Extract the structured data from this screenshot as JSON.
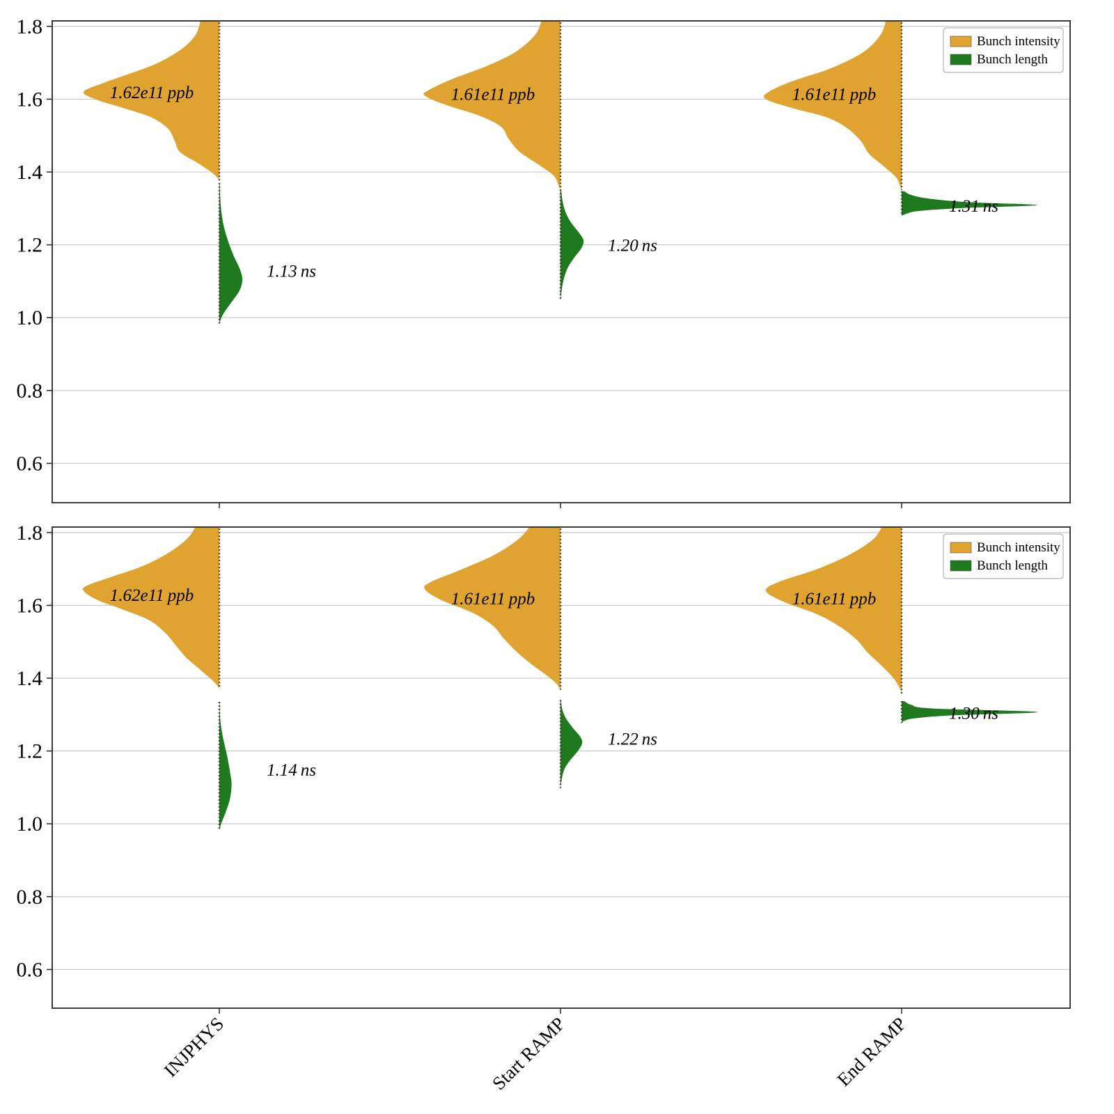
{
  "figure": {
    "background": "#ffffff",
    "n_panels": 2
  },
  "chart_data": [
    {
      "type": "violin",
      "panel": "top",
      "categories": [
        "INJPHYS",
        "Start RAMP",
        "End RAMP"
      ],
      "ylim": [
        0.49,
        1.82
      ],
      "yticks": [
        "0.6",
        "0.8",
        "1.0",
        "1.2",
        "1.4",
        "1.6",
        "1.8"
      ],
      "grid": true,
      "show_xtick_labels": false,
      "legend": {
        "position": "upper right",
        "entries": [
          {
            "label": "Bunch intensity",
            "color": "#E0A330"
          },
          {
            "label": "Bunch length",
            "color": "#1F7A1F"
          }
        ]
      },
      "series": [
        {
          "name": "Bunch intensity",
          "side": "left",
          "color": "#E0A330",
          "violins": [
            {
              "category": "INJPHYS",
              "annotation": {
                "value": "1.62e11",
                "unit": "ppb",
                "at": 1.62
              },
              "width_hint": 1.0,
              "profile": [
                [
                  1.83,
                  0.13
                ],
                [
                  1.78,
                  0.17
                ],
                [
                  1.74,
                  0.27
                ],
                [
                  1.7,
                  0.45
                ],
                [
                  1.67,
                  0.66
                ],
                [
                  1.645,
                  0.85
                ],
                [
                  1.62,
                  1.0
                ],
                [
                  1.598,
                  0.9
                ],
                [
                  1.575,
                  0.7
                ],
                [
                  1.55,
                  0.5
                ],
                [
                  1.52,
                  0.38
                ],
                [
                  1.487,
                  0.33
                ],
                [
                  1.455,
                  0.29
                ],
                [
                  1.425,
                  0.16
                ],
                [
                  1.4,
                  0.06
                ],
                [
                  1.383,
                  0.01
                ],
                [
                  1.375,
                  0.0
                ]
              ]
            },
            {
              "category": "Start RAMP",
              "annotation": {
                "value": "1.61e11",
                "unit": "ppb",
                "at": 1.615
              },
              "width_hint": 1.0,
              "profile": [
                [
                  1.83,
                  0.13
                ],
                [
                  1.78,
                  0.18
                ],
                [
                  1.73,
                  0.33
                ],
                [
                  1.69,
                  0.55
                ],
                [
                  1.655,
                  0.8
                ],
                [
                  1.625,
                  0.97
                ],
                [
                  1.61,
                  1.0
                ],
                [
                  1.585,
                  0.85
                ],
                [
                  1.555,
                  0.6
                ],
                [
                  1.525,
                  0.44
                ],
                [
                  1.49,
                  0.38
                ],
                [
                  1.455,
                  0.3
                ],
                [
                  1.42,
                  0.16
                ],
                [
                  1.39,
                  0.05
                ],
                [
                  1.36,
                  0.01
                ],
                [
                  1.352,
                  0.0
                ]
              ]
            },
            {
              "category": "End RAMP",
              "annotation": {
                "value": "1.61e11",
                "unit": "ppb",
                "at": 1.615
              },
              "width_hint": 1.0,
              "profile": [
                [
                  1.83,
                  0.11
                ],
                [
                  1.78,
                  0.15
                ],
                [
                  1.73,
                  0.28
                ],
                [
                  1.685,
                  0.52
                ],
                [
                  1.65,
                  0.8
                ],
                [
                  1.62,
                  0.98
                ],
                [
                  1.6,
                  1.0
                ],
                [
                  1.575,
                  0.8
                ],
                [
                  1.55,
                  0.55
                ],
                [
                  1.52,
                  0.4
                ],
                [
                  1.485,
                  0.3
                ],
                [
                  1.45,
                  0.24
                ],
                [
                  1.415,
                  0.13
                ],
                [
                  1.385,
                  0.04
                ],
                [
                  1.36,
                  0.01
                ],
                [
                  1.35,
                  0.0
                ]
              ]
            }
          ]
        },
        {
          "name": "Bunch length",
          "side": "right",
          "color": "#1F7A1F",
          "violins": [
            {
              "category": "INJPHYS",
              "annotation": {
                "value": "1.13",
                "unit": "ns",
                "at": 1.13
              },
              "width_hint": 0.17,
              "profile": [
                [
                  1.37,
                  0.02
                ],
                [
                  1.33,
                  0.04
                ],
                [
                  1.29,
                  0.09
                ],
                [
                  1.25,
                  0.2
                ],
                [
                  1.21,
                  0.38
                ],
                [
                  1.17,
                  0.62
                ],
                [
                  1.135,
                  0.88
                ],
                [
                  1.105,
                  1.0
                ],
                [
                  1.075,
                  0.88
                ],
                [
                  1.04,
                  0.5
                ],
                [
                  1.01,
                  0.17
                ],
                [
                  0.988,
                  0.02
                ],
                [
                  0.982,
                  0.0
                ]
              ]
            },
            {
              "category": "Start RAMP",
              "annotation": {
                "value": "1.20",
                "unit": "ns",
                "at": 1.2
              },
              "width_hint": 0.17,
              "profile": [
                [
                  1.352,
                  0.03
                ],
                [
                  1.32,
                  0.09
                ],
                [
                  1.29,
                  0.22
                ],
                [
                  1.262,
                  0.45
                ],
                [
                  1.235,
                  0.78
                ],
                [
                  1.212,
                  1.0
                ],
                [
                  1.19,
                  0.9
                ],
                [
                  1.165,
                  0.6
                ],
                [
                  1.135,
                  0.3
                ],
                [
                  1.1,
                  0.12
                ],
                [
                  1.065,
                  0.03
                ],
                [
                  1.047,
                  0.0
                ]
              ]
            },
            {
              "category": "End RAMP",
              "annotation": {
                "value": "1.31",
                "unit": "ns",
                "at": 1.308
              },
              "width_hint": 1.0,
              "profile": [
                [
                  1.347,
                  0.02
                ],
                [
                  1.337,
                  0.07
                ],
                [
                  1.327,
                  0.2
                ],
                [
                  1.317,
                  0.5
                ],
                [
                  1.309,
                  1.0
                ],
                [
                  1.301,
                  0.45
                ],
                [
                  1.293,
                  0.13
                ],
                [
                  1.286,
                  0.04
                ],
                [
                  1.28,
                  0.0
                ]
              ]
            }
          ]
        }
      ]
    },
    {
      "type": "violin",
      "panel": "bottom",
      "categories": [
        "INJPHYS",
        "Start RAMP",
        "End RAMP"
      ],
      "ylim": [
        0.49,
        1.82
      ],
      "yticks": [
        "0.6",
        "0.8",
        "1.0",
        "1.2",
        "1.4",
        "1.6",
        "1.8"
      ],
      "grid": true,
      "show_xtick_labels": true,
      "legend": {
        "position": "upper right",
        "entries": [
          {
            "label": "Bunch intensity",
            "color": "#E0A330"
          },
          {
            "label": "Bunch length",
            "color": "#1F7A1F"
          }
        ]
      },
      "series": [
        {
          "name": "Bunch intensity",
          "side": "left",
          "color": "#E0A330",
          "violins": [
            {
              "category": "INJPHYS",
              "annotation": {
                "value": "1.62e11",
                "unit": "ppb",
                "at": 1.63
              },
              "width_hint": 1.0,
              "profile": [
                [
                  1.83,
                  0.16
                ],
                [
                  1.79,
                  0.22
                ],
                [
                  1.75,
                  0.35
                ],
                [
                  1.71,
                  0.55
                ],
                [
                  1.68,
                  0.78
                ],
                [
                  1.655,
                  0.97
                ],
                [
                  1.64,
                  1.0
                ],
                [
                  1.615,
                  0.9
                ],
                [
                  1.59,
                  0.72
                ],
                [
                  1.56,
                  0.52
                ],
                [
                  1.525,
                  0.4
                ],
                [
                  1.49,
                  0.32
                ],
                [
                  1.455,
                  0.24
                ],
                [
                  1.42,
                  0.13
                ],
                [
                  1.39,
                  0.04
                ],
                [
                  1.372,
                  0.0
                ]
              ]
            },
            {
              "category": "Start RAMP",
              "annotation": {
                "value": "1.61e11",
                "unit": "ppb",
                "at": 1.62
              },
              "width_hint": 1.0,
              "profile": [
                [
                  1.83,
                  0.2
                ],
                [
                  1.785,
                  0.3
                ],
                [
                  1.74,
                  0.48
                ],
                [
                  1.7,
                  0.72
                ],
                [
                  1.665,
                  0.95
                ],
                [
                  1.645,
                  1.0
                ],
                [
                  1.615,
                  0.88
                ],
                [
                  1.58,
                  0.65
                ],
                [
                  1.545,
                  0.5
                ],
                [
                  1.51,
                  0.42
                ],
                [
                  1.475,
                  0.33
                ],
                [
                  1.44,
                  0.22
                ],
                [
                  1.41,
                  0.11
                ],
                [
                  1.385,
                  0.03
                ],
                [
                  1.368,
                  0.0
                ]
              ]
            },
            {
              "category": "End RAMP",
              "annotation": {
                "value": "1.61e11",
                "unit": "ppb",
                "at": 1.62
              },
              "width_hint": 1.0,
              "profile": [
                [
                  1.83,
                  0.13
                ],
                [
                  1.785,
                  0.2
                ],
                [
                  1.74,
                  0.38
                ],
                [
                  1.7,
                  0.62
                ],
                [
                  1.665,
                  0.9
                ],
                [
                  1.64,
                  1.0
                ],
                [
                  1.61,
                  0.87
                ],
                [
                  1.575,
                  0.62
                ],
                [
                  1.54,
                  0.45
                ],
                [
                  1.505,
                  0.33
                ],
                [
                  1.47,
                  0.25
                ],
                [
                  1.435,
                  0.15
                ],
                [
                  1.4,
                  0.06
                ],
                [
                  1.37,
                  0.01
                ],
                [
                  1.355,
                  0.0
                ]
              ]
            }
          ]
        },
        {
          "name": "Bunch length",
          "side": "right",
          "color": "#1F7A1F",
          "violins": [
            {
              "category": "INJPHYS",
              "annotation": {
                "value": "1.14",
                "unit": "ns",
                "at": 1.15
              },
              "width_hint": 0.09,
              "profile": [
                [
                  1.335,
                  0.02
                ],
                [
                  1.3,
                  0.05
                ],
                [
                  1.27,
                  0.13
                ],
                [
                  1.24,
                  0.28
                ],
                [
                  1.21,
                  0.48
                ],
                [
                  1.18,
                  0.68
                ],
                [
                  1.145,
                  0.86
                ],
                [
                  1.11,
                  1.0
                ],
                [
                  1.07,
                  0.88
                ],
                [
                  1.03,
                  0.5
                ],
                [
                  1.0,
                  0.15
                ],
                [
                  0.982,
                  0.0
                ]
              ]
            },
            {
              "category": "Start RAMP",
              "annotation": {
                "value": "1.22",
                "unit": "ns",
                "at": 1.235
              },
              "width_hint": 0.16,
              "profile": [
                [
                  1.34,
                  0.02
                ],
                [
                  1.315,
                  0.08
                ],
                [
                  1.29,
                  0.25
                ],
                [
                  1.265,
                  0.55
                ],
                [
                  1.24,
                  0.9
                ],
                [
                  1.222,
                  1.0
                ],
                [
                  1.2,
                  0.8
                ],
                [
                  1.175,
                  0.45
                ],
                [
                  1.15,
                  0.18
                ],
                [
                  1.12,
                  0.05
                ],
                [
                  1.098,
                  0.0
                ]
              ]
            },
            {
              "category": "End RAMP",
              "annotation": {
                "value": "1.30",
                "unit": "ns",
                "at": 1.305
              },
              "width_hint": 1.0,
              "profile": [
                [
                  1.337,
                  0.02
                ],
                [
                  1.327,
                  0.07
                ],
                [
                  1.317,
                  0.22
                ],
                [
                  1.307,
                  1.0
                ],
                [
                  1.298,
                  0.38
                ],
                [
                  1.29,
                  0.1
                ],
                [
                  1.283,
                  0.02
                ],
                [
                  1.277,
                  0.0
                ]
              ]
            }
          ]
        }
      ]
    }
  ],
  "style": {
    "gridline_color": "#c9c9c9",
    "axis_color": "#262626",
    "stick_color": "#32321f",
    "annotation_color": "#000000"
  }
}
